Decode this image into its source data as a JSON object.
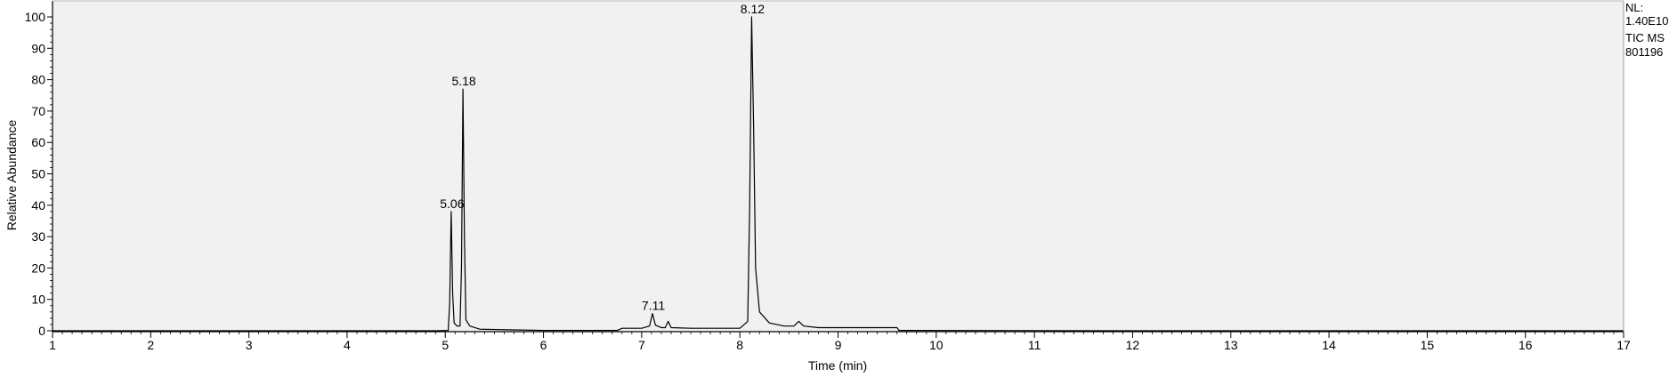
{
  "chart_data": {
    "type": "line",
    "title": "",
    "xlabel": "Time (min)",
    "ylabel": "Relative Abundance",
    "xlim": [
      1,
      17
    ],
    "ylim": [
      0,
      100
    ],
    "x_ticks": [
      1,
      2,
      3,
      4,
      5,
      6,
      7,
      8,
      9,
      10,
      11,
      12,
      13,
      14,
      15,
      16,
      17
    ],
    "y_ticks": [
      0,
      10,
      20,
      30,
      40,
      50,
      60,
      70,
      80,
      90,
      100
    ],
    "grid": false,
    "legend": "none",
    "colors": {
      "plot_background": "#f1f1f1",
      "trace": "#000000",
      "axis": "#000000"
    },
    "series": [
      {
        "x": [
          1.0,
          4.9,
          5.03,
          5.045,
          5.06,
          5.075,
          5.09,
          5.12,
          5.15,
          5.165,
          5.18,
          5.195,
          5.21,
          5.25,
          5.35,
          6.0,
          6.75,
          6.8,
          7.0,
          7.08,
          7.11,
          7.14,
          7.2,
          7.24,
          7.27,
          7.3,
          7.5,
          8.0,
          8.08,
          8.1,
          8.12,
          8.14,
          8.16,
          8.2,
          8.3,
          8.45,
          8.55,
          8.6,
          8.65,
          8.8,
          9.2,
          9.6,
          9.62,
          12.0,
          17.0
        ],
        "y": [
          0.0,
          0.0,
          0.1,
          9.0,
          38.0,
          12.0,
          2.5,
          1.5,
          1.5,
          20.0,
          77.0,
          30.0,
          3.5,
          1.5,
          0.5,
          0.1,
          0.1,
          0.8,
          0.8,
          1.5,
          5.5,
          1.8,
          1.0,
          1.0,
          3.0,
          1.0,
          0.8,
          0.8,
          3.0,
          40.0,
          100.0,
          65.0,
          20.0,
          6.0,
          2.5,
          1.5,
          1.5,
          3.0,
          1.5,
          1.0,
          1.0,
          1.0,
          0.1,
          0.0,
          0.0
        ]
      }
    ],
    "annotations": [
      {
        "x": 5.06,
        "y": 38.0,
        "text": "5.06"
      },
      {
        "x": 5.18,
        "y": 77.0,
        "text": "5.18"
      },
      {
        "x": 7.11,
        "y": 5.5,
        "text": "7.11"
      },
      {
        "x": 8.12,
        "y": 100.0,
        "text": "8.12"
      }
    ]
  },
  "normalization": {
    "lines": [
      "NL:",
      "1.40E10",
      "TIC  MS",
      "801196"
    ]
  }
}
